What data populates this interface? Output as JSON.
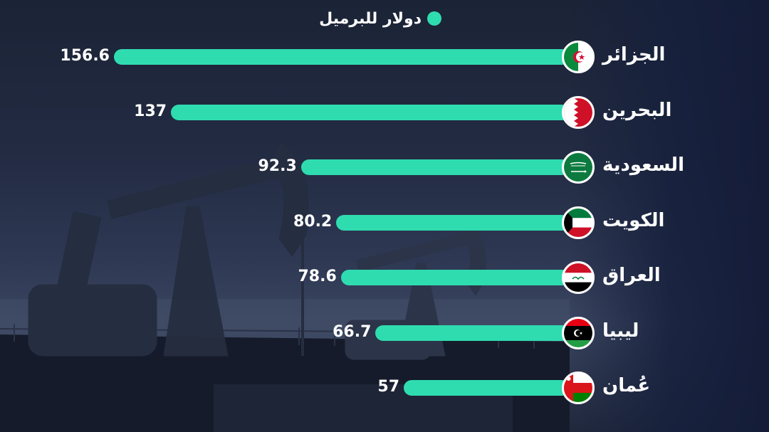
{
  "legend": {
    "label": "دولار للبرميل",
    "color": "#2fdcb0"
  },
  "chart_data": {
    "type": "bar",
    "orientation": "horizontal",
    "categories": [
      "الجزائر",
      "البحرين",
      "السعودية",
      "الكويت",
      "العراق",
      "ليبيا",
      "عُمان"
    ],
    "series": [
      {
        "name": "دولار للبرميل",
        "values": [
          156.6,
          137,
          92.3,
          80.2,
          78.6,
          66.7,
          57
        ]
      }
    ],
    "value_labels": [
      "156.6",
      "137",
      "92.3",
      "80.2",
      "78.6",
      "66.7",
      "57"
    ],
    "flags": [
      "algeria-flag-icon",
      "bahrain-flag-icon",
      "saudi-flag-icon",
      "kuwait-flag-icon",
      "iraq-flag-icon",
      "libya-flag-icon",
      "oman-flag-icon"
    ],
    "xlim": [
      0,
      156.6
    ],
    "grid": false,
    "legend_position": "top-center",
    "bar_color": "#2fdcb0"
  }
}
